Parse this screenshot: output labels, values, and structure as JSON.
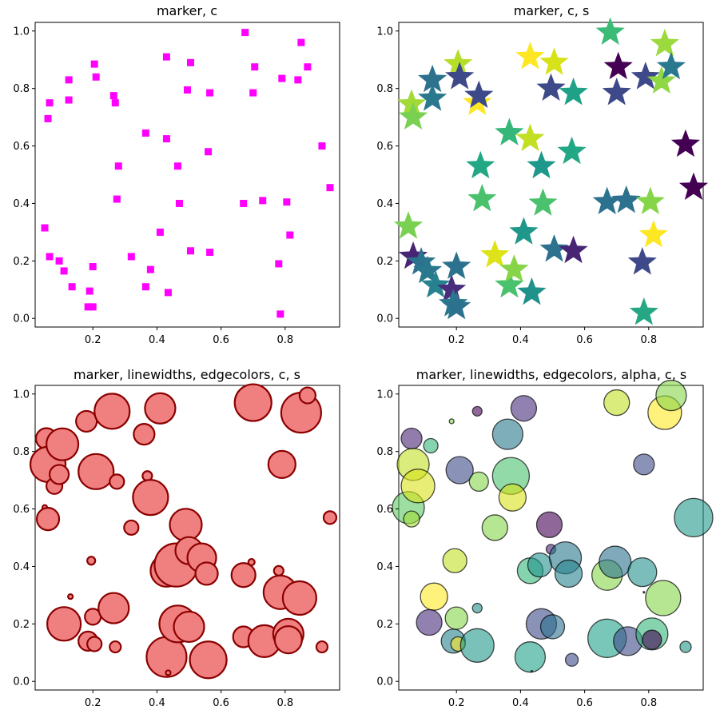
{
  "chart_data": [
    {
      "type": "scatter",
      "title": "marker, c",
      "marker": "square",
      "color": "#ff00ff",
      "xlim": [
        0.02,
        0.97
      ],
      "ylim": [
        -0.03,
        1.03
      ],
      "x_ticks": [
        "0.2",
        "0.4",
        "0.6",
        "0.8"
      ],
      "y_ticks": [
        "0.0",
        "0.2",
        "0.4",
        "0.6",
        "0.8",
        "1.0"
      ],
      "points": [
        {
          "x": 0.05,
          "y": 0.315
        },
        {
          "x": 0.06,
          "y": 0.695
        },
        {
          "x": 0.065,
          "y": 0.75
        },
        {
          "x": 0.065,
          "y": 0.215
        },
        {
          "x": 0.095,
          "y": 0.2
        },
        {
          "x": 0.11,
          "y": 0.165
        },
        {
          "x": 0.125,
          "y": 0.76
        },
        {
          "x": 0.125,
          "y": 0.83
        },
        {
          "x": 0.135,
          "y": 0.11
        },
        {
          "x": 0.185,
          "y": 0.04
        },
        {
          "x": 0.19,
          "y": 0.095
        },
        {
          "x": 0.2,
          "y": 0.04
        },
        {
          "x": 0.2,
          "y": 0.18
        },
        {
          "x": 0.205,
          "y": 0.885
        },
        {
          "x": 0.21,
          "y": 0.84
        },
        {
          "x": 0.265,
          "y": 0.775
        },
        {
          "x": 0.27,
          "y": 0.75
        },
        {
          "x": 0.275,
          "y": 0.415
        },
        {
          "x": 0.28,
          "y": 0.53
        },
        {
          "x": 0.32,
          "y": 0.215
        },
        {
          "x": 0.365,
          "y": 0.645
        },
        {
          "x": 0.365,
          "y": 0.11
        },
        {
          "x": 0.38,
          "y": 0.17
        },
        {
          "x": 0.41,
          "y": 0.3
        },
        {
          "x": 0.43,
          "y": 0.91
        },
        {
          "x": 0.43,
          "y": 0.625
        },
        {
          "x": 0.435,
          "y": 0.09
        },
        {
          "x": 0.465,
          "y": 0.53
        },
        {
          "x": 0.47,
          "y": 0.4
        },
        {
          "x": 0.495,
          "y": 0.795
        },
        {
          "x": 0.505,
          "y": 0.89
        },
        {
          "x": 0.505,
          "y": 0.235
        },
        {
          "x": 0.56,
          "y": 0.58
        },
        {
          "x": 0.565,
          "y": 0.785
        },
        {
          "x": 0.565,
          "y": 0.23
        },
        {
          "x": 0.67,
          "y": 0.4
        },
        {
          "x": 0.675,
          "y": 0.995
        },
        {
          "x": 0.7,
          "y": 0.785
        },
        {
          "x": 0.705,
          "y": 0.875
        },
        {
          "x": 0.73,
          "y": 0.41
        },
        {
          "x": 0.78,
          "y": 0.19
        },
        {
          "x": 0.785,
          "y": 0.015
        },
        {
          "x": 0.79,
          "y": 0.835
        },
        {
          "x": 0.805,
          "y": 0.405
        },
        {
          "x": 0.815,
          "y": 0.29
        },
        {
          "x": 0.84,
          "y": 0.83
        },
        {
          "x": 0.85,
          "y": 0.96
        },
        {
          "x": 0.87,
          "y": 0.875
        },
        {
          "x": 0.915,
          "y": 0.6
        },
        {
          "x": 0.94,
          "y": 0.455
        }
      ]
    },
    {
      "type": "scatter",
      "title": "marker, c, s",
      "marker": "star",
      "xlim": [
        0.02,
        0.97
      ],
      "ylim": [
        -0.03,
        1.03
      ],
      "x_ticks": [
        "0.2",
        "0.4",
        "0.6",
        "0.8"
      ],
      "y_ticks": [
        "0.0",
        "0.2",
        "0.4",
        "0.6",
        "0.8",
        "1.0"
      ],
      "points": [
        {
          "x": 0.05,
          "y": 0.32,
          "color": "#7ad151"
        },
        {
          "x": 0.06,
          "y": 0.745,
          "color": "#a2da37"
        },
        {
          "x": 0.065,
          "y": 0.7,
          "color": "#7ad151"
        },
        {
          "x": 0.065,
          "y": 0.215,
          "color": "#482475"
        },
        {
          "x": 0.09,
          "y": 0.195,
          "color": "#2c728e"
        },
        {
          "x": 0.11,
          "y": 0.165,
          "color": "#2a788e"
        },
        {
          "x": 0.125,
          "y": 0.83,
          "color": "#2c728e"
        },
        {
          "x": 0.125,
          "y": 0.765,
          "color": "#2a788e"
        },
        {
          "x": 0.135,
          "y": 0.115,
          "color": "#26828e"
        },
        {
          "x": 0.185,
          "y": 0.1,
          "color": "#472d7b"
        },
        {
          "x": 0.19,
          "y": 0.05,
          "color": "#2a788e"
        },
        {
          "x": 0.2,
          "y": 0.04,
          "color": "#2c728e"
        },
        {
          "x": 0.2,
          "y": 0.18,
          "color": "#2c728e"
        },
        {
          "x": 0.205,
          "y": 0.885,
          "color": "#b5de2b"
        },
        {
          "x": 0.21,
          "y": 0.84,
          "color": "#3e4989"
        },
        {
          "x": 0.265,
          "y": 0.75,
          "color": "#fde725"
        },
        {
          "x": 0.27,
          "y": 0.775,
          "color": "#3e4989"
        },
        {
          "x": 0.275,
          "y": 0.53,
          "color": "#22a884"
        },
        {
          "x": 0.28,
          "y": 0.415,
          "color": "#4ac16d"
        },
        {
          "x": 0.32,
          "y": 0.22,
          "color": "#dde318"
        },
        {
          "x": 0.365,
          "y": 0.645,
          "color": "#35b779"
        },
        {
          "x": 0.365,
          "y": 0.115,
          "color": "#4ac16d"
        },
        {
          "x": 0.38,
          "y": 0.17,
          "color": "#86d549"
        },
        {
          "x": 0.41,
          "y": 0.3,
          "color": "#1f988b"
        },
        {
          "x": 0.43,
          "y": 0.91,
          "color": "#fde725"
        },
        {
          "x": 0.43,
          "y": 0.625,
          "color": "#c2df23"
        },
        {
          "x": 0.435,
          "y": 0.09,
          "color": "#21918c"
        },
        {
          "x": 0.465,
          "y": 0.53,
          "color": "#1f988b"
        },
        {
          "x": 0.47,
          "y": 0.4,
          "color": "#4ac16d"
        },
        {
          "x": 0.495,
          "y": 0.8,
          "color": "#3e4989"
        },
        {
          "x": 0.505,
          "y": 0.89,
          "color": "#d8e219"
        },
        {
          "x": 0.505,
          "y": 0.24,
          "color": "#2c728e"
        },
        {
          "x": 0.56,
          "y": 0.58,
          "color": "#22a884"
        },
        {
          "x": 0.565,
          "y": 0.785,
          "color": "#1fa188"
        },
        {
          "x": 0.565,
          "y": 0.235,
          "color": "#482475"
        },
        {
          "x": 0.67,
          "y": 0.405,
          "color": "#2c728e"
        },
        {
          "x": 0.68,
          "y": 0.995,
          "color": "#3bbb75"
        },
        {
          "x": 0.7,
          "y": 0.785,
          "color": "#3e4989"
        },
        {
          "x": 0.705,
          "y": 0.875,
          "color": "#440154"
        },
        {
          "x": 0.73,
          "y": 0.41,
          "color": "#2c728e"
        },
        {
          "x": 0.78,
          "y": 0.195,
          "color": "#3e4989"
        },
        {
          "x": 0.785,
          "y": 0.02,
          "color": "#26a784"
        },
        {
          "x": 0.79,
          "y": 0.84,
          "color": "#3e4989"
        },
        {
          "x": 0.805,
          "y": 0.405,
          "color": "#86d549"
        },
        {
          "x": 0.815,
          "y": 0.29,
          "color": "#fde725"
        },
        {
          "x": 0.84,
          "y": 0.825,
          "color": "#8fd744"
        },
        {
          "x": 0.85,
          "y": 0.955,
          "color": "#9bd93c"
        },
        {
          "x": 0.87,
          "y": 0.875,
          "color": "#2a788e"
        },
        {
          "x": 0.915,
          "y": 0.605,
          "color": "#440154"
        },
        {
          "x": 0.94,
          "y": 0.455,
          "color": "#440154"
        }
      ]
    },
    {
      "type": "scatter",
      "title": "marker, linewidths, edgecolors, c, s",
      "marker": "circle",
      "color": "#f08080",
      "edgecolor": "#8b0000",
      "xlim": [
        0.02,
        0.97
      ],
      "ylim": [
        -0.03,
        1.03
      ],
      "x_ticks": [
        "0.2",
        "0.4",
        "0.6",
        "0.8"
      ],
      "y_ticks": [
        "0.0",
        "0.2",
        "0.4",
        "0.6",
        "0.8",
        "1.0"
      ],
      "points": [
        {
          "x": 0.05,
          "y": 0.605,
          "s": 3
        },
        {
          "x": 0.06,
          "y": 0.565,
          "s": 14
        },
        {
          "x": 0.055,
          "y": 0.845,
          "s": 13
        },
        {
          "x": 0.06,
          "y": 0.755,
          "s": 22
        },
        {
          "x": 0.08,
          "y": 0.68,
          "s": 10
        },
        {
          "x": 0.095,
          "y": 0.72,
          "s": 12
        },
        {
          "x": 0.105,
          "y": 0.825,
          "s": 20
        },
        {
          "x": 0.11,
          "y": 0.2,
          "s": 21
        },
        {
          "x": 0.18,
          "y": 0.905,
          "s": 13
        },
        {
          "x": 0.185,
          "y": 0.14,
          "s": 12
        },
        {
          "x": 0.195,
          "y": 0.42,
          "s": 5
        },
        {
          "x": 0.2,
          "y": 0.225,
          "s": 10
        },
        {
          "x": 0.205,
          "y": 0.13,
          "s": 9
        },
        {
          "x": 0.21,
          "y": 0.73,
          "s": 22
        },
        {
          "x": 0.26,
          "y": 0.94,
          "s": 22
        },
        {
          "x": 0.265,
          "y": 0.255,
          "s": 19
        },
        {
          "x": 0.275,
          "y": 0.695,
          "s": 9
        },
        {
          "x": 0.27,
          "y": 0.12,
          "s": 7
        },
        {
          "x": 0.13,
          "y": 0.295,
          "s": 3
        },
        {
          "x": 0.32,
          "y": 0.535,
          "s": 9
        },
        {
          "x": 0.36,
          "y": 0.86,
          "s": 13
        },
        {
          "x": 0.37,
          "y": 0.715,
          "s": 6
        },
        {
          "x": 0.38,
          "y": 0.64,
          "s": 22
        },
        {
          "x": 0.41,
          "y": 0.95,
          "s": 19
        },
        {
          "x": 0.43,
          "y": 0.385,
          "s": 20
        },
        {
          "x": 0.43,
          "y": 0.085,
          "s": 25
        },
        {
          "x": 0.435,
          "y": 0.03,
          "s": 3
        },
        {
          "x": 0.46,
          "y": 0.405,
          "s": 27
        },
        {
          "x": 0.465,
          "y": 0.2,
          "s": 23
        },
        {
          "x": 0.49,
          "y": 0.545,
          "s": 20
        },
        {
          "x": 0.5,
          "y": 0.455,
          "s": 17
        },
        {
          "x": 0.5,
          "y": 0.19,
          "s": 19
        },
        {
          "x": 0.54,
          "y": 0.43,
          "s": 18
        },
        {
          "x": 0.555,
          "y": 0.375,
          "s": 14
        },
        {
          "x": 0.56,
          "y": 0.075,
          "s": 23
        },
        {
          "x": 0.67,
          "y": 0.155,
          "s": 13
        },
        {
          "x": 0.67,
          "y": 0.37,
          "s": 15
        },
        {
          "x": 0.695,
          "y": 0.415,
          "s": 4
        },
        {
          "x": 0.7,
          "y": 0.97,
          "s": 23
        },
        {
          "x": 0.735,
          "y": 0.14,
          "s": 20
        },
        {
          "x": 0.78,
          "y": 0.385,
          "s": 6
        },
        {
          "x": 0.785,
          "y": 0.31,
          "s": 21
        },
        {
          "x": 0.79,
          "y": 0.755,
          "s": 17
        },
        {
          "x": 0.81,
          "y": 0.165,
          "s": 19
        },
        {
          "x": 0.81,
          "y": 0.145,
          "s": 17
        },
        {
          "x": 0.845,
          "y": 0.29,
          "s": 21
        },
        {
          "x": 0.85,
          "y": 0.935,
          "s": 25
        },
        {
          "x": 0.87,
          "y": 0.995,
          "s": 10
        },
        {
          "x": 0.915,
          "y": 0.12,
          "s": 7
        },
        {
          "x": 0.94,
          "y": 0.57,
          "s": 8
        }
      ]
    },
    {
      "type": "scatter",
      "title": "marker, linewidths, edgecolors, alpha, c, s",
      "marker": "circle",
      "edgecolor": "#000000",
      "alpha": 0.6,
      "xlim": [
        0.02,
        0.97
      ],
      "ylim": [
        -0.03,
        1.03
      ],
      "x_ticks": [
        "0.2",
        "0.4",
        "0.6",
        "0.8"
      ],
      "y_ticks": [
        "0.0",
        "0.2",
        "0.4",
        "0.6",
        "0.8",
        "1.0"
      ],
      "points": [
        {
          "x": 0.05,
          "y": 0.605,
          "s": 20,
          "color": "#5ec962"
        },
        {
          "x": 0.06,
          "y": 0.565,
          "s": 10,
          "color": "#a0da39"
        },
        {
          "x": 0.06,
          "y": 0.845,
          "s": 13,
          "color": "#482475"
        },
        {
          "x": 0.065,
          "y": 0.755,
          "s": 20,
          "color": "#c2df23"
        },
        {
          "x": 0.08,
          "y": 0.68,
          "s": 21,
          "color": "#d8e219"
        },
        {
          "x": 0.12,
          "y": 0.82,
          "s": 9,
          "color": "#35b779"
        },
        {
          "x": 0.13,
          "y": 0.295,
          "s": 17,
          "color": "#fde725"
        },
        {
          "x": 0.115,
          "y": 0.205,
          "s": 16,
          "color": "#472d7b"
        },
        {
          "x": 0.185,
          "y": 0.905,
          "s": 3,
          "color": "#86d549"
        },
        {
          "x": 0.19,
          "y": 0.14,
          "s": 15,
          "color": "#26828e"
        },
        {
          "x": 0.195,
          "y": 0.42,
          "s": 15,
          "color": "#c2df23"
        },
        {
          "x": 0.2,
          "y": 0.22,
          "s": 14,
          "color": "#86d549"
        },
        {
          "x": 0.205,
          "y": 0.13,
          "s": 9,
          "color": "#fde725"
        },
        {
          "x": 0.21,
          "y": 0.735,
          "s": 17,
          "color": "#3e4989"
        },
        {
          "x": 0.265,
          "y": 0.94,
          "s": 6,
          "color": "#440154"
        },
        {
          "x": 0.265,
          "y": 0.255,
          "s": 6,
          "color": "#21918c"
        },
        {
          "x": 0.27,
          "y": 0.695,
          "s": 12,
          "color": "#86d549"
        },
        {
          "x": 0.265,
          "y": 0.125,
          "s": 21,
          "color": "#1f988b"
        },
        {
          "x": 0.32,
          "y": 0.535,
          "s": 16,
          "color": "#86d549"
        },
        {
          "x": 0.36,
          "y": 0.86,
          "s": 19,
          "color": "#2a788e"
        },
        {
          "x": 0.37,
          "y": 0.715,
          "s": 23,
          "color": "#4ac16d"
        },
        {
          "x": 0.375,
          "y": 0.64,
          "s": 17,
          "color": "#d8e219"
        },
        {
          "x": 0.41,
          "y": 0.95,
          "s": 16,
          "color": "#472d7b"
        },
        {
          "x": 0.43,
          "y": 0.385,
          "s": 16,
          "color": "#35b779"
        },
        {
          "x": 0.43,
          "y": 0.085,
          "s": 19,
          "color": "#1fa188"
        },
        {
          "x": 0.435,
          "y": 0.035,
          "s": 1,
          "color": "#21918c"
        },
        {
          "x": 0.46,
          "y": 0.405,
          "s": 15,
          "color": "#21918c"
        },
        {
          "x": 0.465,
          "y": 0.2,
          "s": 19,
          "color": "#3e4989"
        },
        {
          "x": 0.49,
          "y": 0.545,
          "s": 16,
          "color": "#440154"
        },
        {
          "x": 0.495,
          "y": 0.46,
          "s": 6,
          "color": "#482475"
        },
        {
          "x": 0.5,
          "y": 0.19,
          "s": 15,
          "color": "#2c728e"
        },
        {
          "x": 0.54,
          "y": 0.43,
          "s": 20,
          "color": "#2a788e"
        },
        {
          "x": 0.55,
          "y": 0.375,
          "s": 17,
          "color": "#26828e"
        },
        {
          "x": 0.56,
          "y": 0.075,
          "s": 8,
          "color": "#3e4989"
        },
        {
          "x": 0.67,
          "y": 0.15,
          "s": 24,
          "color": "#1fa188"
        },
        {
          "x": 0.67,
          "y": 0.37,
          "s": 19,
          "color": "#86d549"
        },
        {
          "x": 0.695,
          "y": 0.415,
          "s": 20,
          "color": "#2c728e"
        },
        {
          "x": 0.7,
          "y": 0.97,
          "s": 16,
          "color": "#c2df23"
        },
        {
          "x": 0.735,
          "y": 0.14,
          "s": 18,
          "color": "#3e4989"
        },
        {
          "x": 0.78,
          "y": 0.38,
          "s": 18,
          "color": "#21918c"
        },
        {
          "x": 0.785,
          "y": 0.31,
          "s": 1,
          "color": "#440154"
        },
        {
          "x": 0.785,
          "y": 0.755,
          "s": 13,
          "color": "#3e4989"
        },
        {
          "x": 0.81,
          "y": 0.165,
          "s": 20,
          "color": "#35b779"
        },
        {
          "x": 0.81,
          "y": 0.145,
          "s": 12,
          "color": "#440154"
        },
        {
          "x": 0.845,
          "y": 0.29,
          "s": 22,
          "color": "#86d549"
        },
        {
          "x": 0.85,
          "y": 0.935,
          "s": 21,
          "color": "#fde725"
        },
        {
          "x": 0.87,
          "y": 0.995,
          "s": 19,
          "color": "#86d549"
        },
        {
          "x": 0.915,
          "y": 0.12,
          "s": 7,
          "color": "#1f988b"
        },
        {
          "x": 0.94,
          "y": 0.57,
          "s": 24,
          "color": "#1f988b"
        }
      ]
    }
  ]
}
